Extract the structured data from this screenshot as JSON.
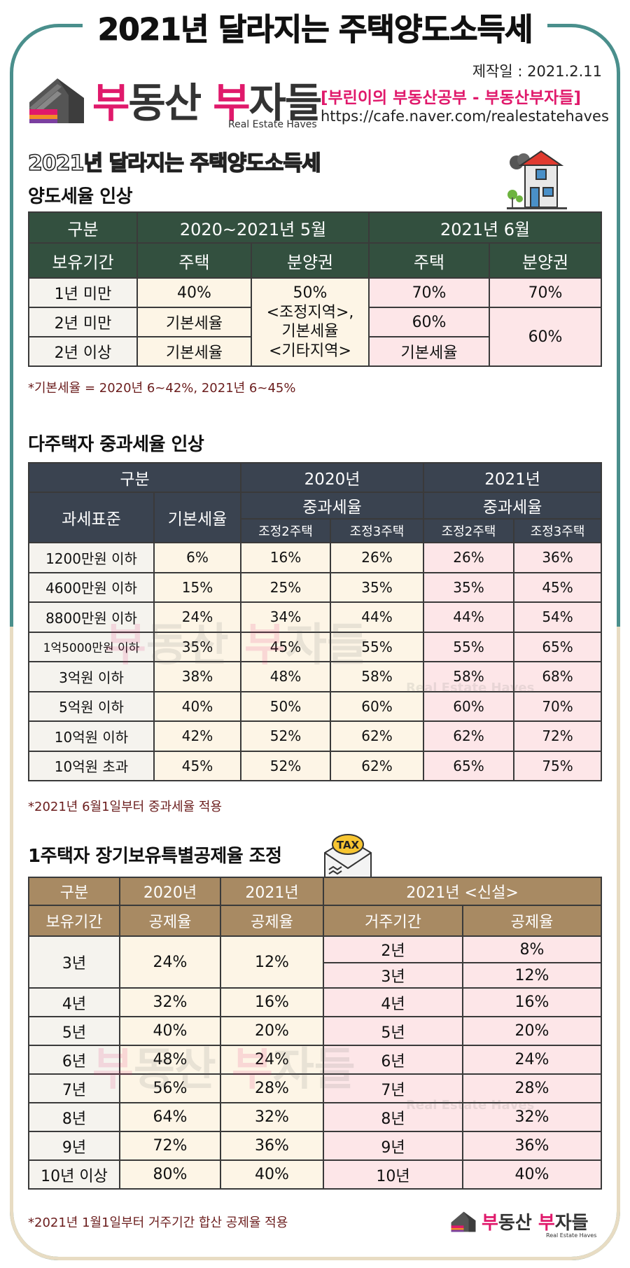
{
  "header": {
    "top_title": "2021년 달라지는 주택양도소득세",
    "made_date": "제작일 : 2021.2.11",
    "brand_a": "부",
    "brand_b": "동산 ",
    "brand_c": "부",
    "brand_d": "자들",
    "brand_sub": "Real Estate Haves",
    "cafe_name": "[부린이의 부동산공부 - 부동산부자들]",
    "cafe_url": "https://cafe.naver.com/realestatehaves",
    "section_title": "2021년 달라지는 주택양도소득세"
  },
  "table1": {
    "title": "양도세율 인상",
    "h_group": "구분",
    "h_period1": "2020~2021년 5월",
    "h_period2": "2021년 6월",
    "h_holding": "보유기간",
    "h_house1": "주택",
    "h_presale1": "분양권",
    "h_house2": "주택",
    "h_presale2": "분양권",
    "rows": [
      {
        "label": "1년 미만",
        "house_old": "40%",
        "house_new": "70%",
        "presale_new": "70%"
      },
      {
        "label": "2년 미만",
        "house_old": "기본세율",
        "house_new": "60%",
        "presale_new": "60%"
      },
      {
        "label": "2년 이상",
        "house_old": "기본세율",
        "house_new": "기본세율"
      }
    ],
    "presale_old_1": "50%",
    "presale_old_2": "<조정지역>,",
    "presale_old_3": "기본세율",
    "presale_old_4": "<기타지역>",
    "note": "*기본세율 = 2020년 6~42%, 2021년 6~45%"
  },
  "table2": {
    "title": "다주택자 중과세율 인상",
    "h_group": "구분",
    "h_2020": "2020년",
    "h_2021": "2021년",
    "h_base": "과세표준",
    "h_basic_rate": "기본세율",
    "h_heavy1": "중과세율",
    "h_heavy2": "중과세율",
    "h_s1": "조정2주택",
    "h_s2": "조정3주택",
    "h_s3": "조정2주택",
    "h_s4": "조정3주택",
    "rows": [
      [
        "1200만원 이하",
        "6%",
        "16%",
        "26%",
        "26%",
        "36%"
      ],
      [
        "4600만원 이하",
        "15%",
        "25%",
        "35%",
        "35%",
        "45%"
      ],
      [
        "8800만원 이하",
        "24%",
        "34%",
        "44%",
        "44%",
        "54%"
      ],
      [
        "1억5000만원 이하",
        "35%",
        "45%",
        "55%",
        "55%",
        "65%"
      ],
      [
        "3억원 이하",
        "38%",
        "48%",
        "58%",
        "58%",
        "68%"
      ],
      [
        "5억원 이하",
        "40%",
        "50%",
        "60%",
        "60%",
        "70%"
      ],
      [
        "10억원 이하",
        "42%",
        "52%",
        "62%",
        "62%",
        "72%"
      ],
      [
        "10억원 초과",
        "45%",
        "52%",
        "62%",
        "65%",
        "75%"
      ]
    ],
    "note": "*2021년 6월1일부터 중과세율 적용"
  },
  "table3": {
    "title": "1주택자 장기보유특별공제율 조정",
    "tax_badge": "TAX",
    "h_group": "구분",
    "h_2020": "2020년",
    "h_2021": "2021년",
    "h_new": "2021년 <신설>",
    "h_holding": "보유기간",
    "h_rate1": "공제율",
    "h_rate2": "공제율",
    "h_residence": "거주기간",
    "h_rate3": "공제율",
    "row3": {
      "label": "3년",
      "r2020": "24%",
      "r2021": "12%",
      "res_a": "2년",
      "rate_a": "8%",
      "res_b": "3년",
      "rate_b": "12%"
    },
    "rows": [
      [
        "4년",
        "32%",
        "16%",
        "4년",
        "16%"
      ],
      [
        "5년",
        "40%",
        "20%",
        "5년",
        "20%"
      ],
      [
        "6년",
        "48%",
        "24%",
        "6년",
        "24%"
      ],
      [
        "7년",
        "56%",
        "28%",
        "7년",
        "28%"
      ],
      [
        "8년",
        "64%",
        "32%",
        "8년",
        "32%"
      ],
      [
        "9년",
        "72%",
        "36%",
        "9년",
        "36%"
      ],
      [
        "10년 이상",
        "80%",
        "40%",
        "10년",
        "40%"
      ]
    ],
    "note": "*2021년 1월1일부터 거주기간 합산 공제율 적용"
  },
  "footer": {
    "brand_a": "부",
    "brand_b": "동산 ",
    "brand_c": "부",
    "brand_d": "자들",
    "brand_sub": "Real Estate Haves"
  },
  "colors": {
    "brand_pink": "#e0196b",
    "table1_header": "#33503f",
    "table2_header": "#3a4350",
    "table3_header": "#a88a63",
    "cream": "#fdf5e6",
    "pink": "#fde6e8",
    "frame_teal": "#4a8f8c"
  }
}
